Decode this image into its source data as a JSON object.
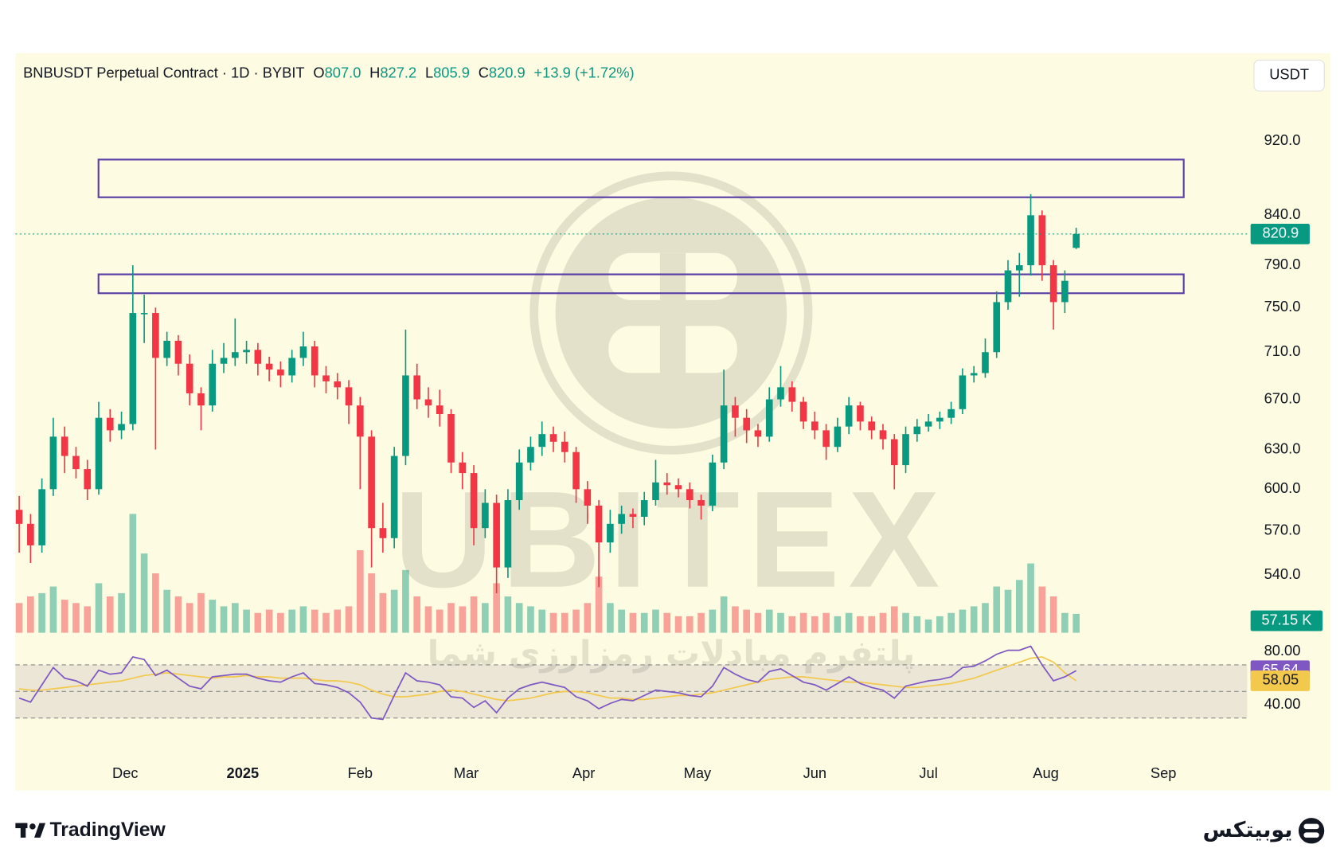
{
  "chart_data": {
    "type": "candlestick",
    "title": "BNBUSDT Perpetual Contract · 1D · BYBIT",
    "ohlc_legend": [
      {
        "key": "O",
        "label": "807.0"
      },
      {
        "key": "H",
        "label": "827.2"
      },
      {
        "key": "L",
        "label": "805.9"
      },
      {
        "key": "C",
        "label": "820.9"
      }
    ],
    "change_label": "+13.9 (+1.72%)",
    "currency": "USDT",
    "log_scale": true,
    "ylim": [
      503,
      1025
    ],
    "yticks": [
      {
        "value": 920,
        "label": "920.0"
      },
      {
        "value": 840,
        "label": "840.0"
      },
      {
        "value": 790,
        "label": "790.0"
      },
      {
        "value": 750,
        "label": "750.0"
      },
      {
        "value": 710,
        "label": "710.0"
      },
      {
        "value": 670,
        "label": "670.0"
      },
      {
        "value": 630,
        "label": "630.0"
      },
      {
        "value": 600,
        "label": "600.0"
      },
      {
        "value": 570,
        "label": "570.0"
      },
      {
        "value": 540,
        "label": "540.0"
      }
    ],
    "xlim": [
      -0.33,
      108.04
    ],
    "xticks": [
      {
        "value": 9.33,
        "label": "Dec"
      },
      {
        "value": 19.67,
        "label": "2025"
      },
      {
        "value": 30,
        "label": "Feb"
      },
      {
        "value": 39.33,
        "label": "Mar"
      },
      {
        "value": 49.67,
        "label": "Apr"
      },
      {
        "value": 59.67,
        "label": "May"
      },
      {
        "value": 70,
        "label": "Jun"
      },
      {
        "value": 80,
        "label": "Jul"
      },
      {
        "value": 90.33,
        "label": "Aug"
      },
      {
        "value": 100.67,
        "label": "Sep"
      }
    ],
    "open": [
      585,
      575,
      560,
      600,
      640,
      625,
      615,
      600,
      655,
      645,
      650,
      745,
      745,
      705,
      720,
      700,
      675,
      665,
      700,
      705,
      710,
      712,
      700,
      695,
      690,
      705,
      715,
      690,
      685,
      680,
      665,
      640,
      572,
      565,
      625,
      690,
      670,
      665,
      658,
      620,
      612,
      572,
      590,
      545,
      592,
      620,
      632,
      642,
      636,
      628,
      600,
      588,
      562,
      575,
      582,
      580,
      592,
      605,
      603,
      600,
      592,
      588,
      620,
      665,
      655,
      645,
      640,
      670,
      680,
      668,
      652,
      645,
      632,
      648,
      665,
      652,
      645,
      638,
      618,
      642,
      648,
      652,
      655,
      662,
      690,
      692,
      710,
      755,
      785,
      790,
      840,
      790,
      755,
      807
    ],
    "high": [
      595,
      582,
      608,
      655,
      648,
      632,
      622,
      668,
      662,
      660,
      790,
      762,
      750,
      728,
      725,
      708,
      680,
      712,
      718,
      740,
      720,
      718,
      706,
      702,
      712,
      728,
      720,
      698,
      692,
      686,
      672,
      645,
      590,
      632,
      730,
      700,
      680,
      678,
      662,
      628,
      618,
      600,
      596,
      600,
      630,
      640,
      652,
      648,
      644,
      632,
      606,
      592,
      585,
      588,
      586,
      598,
      622,
      612,
      608,
      605,
      596,
      626,
      695,
      672,
      662,
      650,
      680,
      698,
      685,
      672,
      660,
      650,
      655,
      672,
      668,
      656,
      650,
      642,
      648,
      654,
      658,
      660,
      668,
      696,
      698,
      722,
      765,
      795,
      802,
      862,
      845,
      795,
      785,
      827.2
    ],
    "low": [
      555,
      548,
      555,
      595,
      612,
      608,
      592,
      596,
      636,
      638,
      645,
      718,
      630,
      698,
      690,
      665,
      645,
      660,
      692,
      698,
      700,
      690,
      685,
      680,
      684,
      698,
      680,
      675,
      670,
      650,
      600,
      545,
      555,
      558,
      618,
      662,
      655,
      648,
      612,
      600,
      560,
      565,
      528,
      538,
      585,
      614,
      625,
      628,
      620,
      590,
      575,
      532,
      555,
      568,
      572,
      574,
      588,
      596,
      594,
      586,
      578,
      584,
      615,
      640,
      635,
      632,
      636,
      664,
      660,
      646,
      638,
      622,
      628,
      642,
      645,
      638,
      630,
      600,
      612,
      636,
      644,
      646,
      650,
      658,
      684,
      688,
      705,
      748,
      760,
      780,
      775,
      730,
      745,
      805.9
    ],
    "close": [
      575,
      560,
      600,
      640,
      625,
      615,
      600,
      655,
      645,
      650,
      745,
      745,
      705,
      720,
      700,
      675,
      665,
      700,
      705,
      710,
      712,
      700,
      695,
      690,
      705,
      715,
      690,
      685,
      680,
      665,
      640,
      572,
      565,
      625,
      690,
      670,
      665,
      658,
      620,
      612,
      572,
      590,
      545,
      592,
      620,
      632,
      642,
      636,
      628,
      600,
      588,
      562,
      575,
      582,
      580,
      592,
      605,
      603,
      600,
      592,
      588,
      620,
      665,
      655,
      645,
      640,
      670,
      680,
      668,
      652,
      645,
      632,
      648,
      665,
      652,
      645,
      638,
      618,
      642,
      648,
      652,
      655,
      662,
      690,
      692,
      710,
      755,
      785,
      790,
      840,
      790,
      755,
      775,
      820.9
    ],
    "up_color": "#089981",
    "down_color": "#f23645",
    "zones": [
      {
        "x": [
          6.98,
          102.46
        ],
        "y": [
          858.8,
          899.5
        ]
      },
      {
        "x": [
          6.98,
          102.46
        ],
        "y": [
          763.3,
          781.2
        ]
      }
    ],
    "zone_color": "#5b3fa8",
    "last_price_color": "#089981",
    "volume": {
      "values": [
        90000,
        110000,
        120000,
        140000,
        100000,
        90000,
        80000,
        150000,
        110000,
        120000,
        360000,
        240000,
        180000,
        130000,
        110000,
        90000,
        120000,
        100000,
        80000,
        90000,
        70000,
        60000,
        70000,
        60000,
        70000,
        80000,
        70000,
        60000,
        70000,
        80000,
        250000,
        180000,
        120000,
        130000,
        190000,
        110000,
        80000,
        70000,
        90000,
        80000,
        110000,
        90000,
        150000,
        110000,
        90000,
        80000,
        70000,
        60000,
        60000,
        70000,
        90000,
        170000,
        90000,
        70000,
        60000,
        60000,
        70000,
        60000,
        50000,
        50000,
        60000,
        70000,
        110000,
        80000,
        70000,
        60000,
        70000,
        60000,
        50000,
        60000,
        50000,
        60000,
        50000,
        60000,
        50000,
        50000,
        60000,
        80000,
        60000,
        50000,
        40000,
        50000,
        60000,
        70000,
        80000,
        90000,
        140000,
        130000,
        160000,
        210000,
        140000,
        110000,
        60000,
        57150
      ],
      "ylim": [
        0,
        1000000
      ],
      "last_label": "57.15 K"
    },
    "rsi": {
      "values": [
        45,
        42,
        55,
        68,
        60,
        58,
        54,
        66,
        63,
        64,
        76,
        74,
        62,
        66,
        60,
        54,
        52,
        61,
        62,
        63,
        63,
        60,
        58,
        57,
        61,
        64,
        56,
        55,
        53,
        49,
        42,
        30,
        29,
        47,
        64,
        58,
        57,
        55,
        46,
        45,
        38,
        43,
        34,
        45,
        52,
        55,
        57,
        55,
        53,
        46,
        43,
        37,
        41,
        44,
        43,
        47,
        51,
        50,
        49,
        47,
        46,
        54,
        68,
        63,
        59,
        57,
        65,
        67,
        62,
        57,
        55,
        51,
        56,
        61,
        56,
        53,
        51,
        45,
        54,
        56,
        58,
        59,
        61,
        68,
        69,
        73,
        78,
        81,
        81,
        84,
        70,
        58,
        61,
        65.64
      ],
      "ma": [
        52,
        51,
        51,
        52,
        53,
        54,
        55,
        56,
        57,
        58,
        60,
        62,
        63,
        64,
        63,
        62,
        61,
        60,
        61,
        61,
        62,
        61,
        61,
        60,
        60,
        60,
        59,
        58,
        58,
        57,
        55,
        51,
        48,
        46,
        46,
        47,
        48,
        50,
        51,
        50,
        48,
        46,
        44,
        43,
        44,
        45,
        47,
        49,
        50,
        50,
        49,
        47,
        45,
        45,
        44,
        44,
        45,
        46,
        47,
        47,
        48,
        49,
        51,
        53,
        55,
        57,
        59,
        60,
        61,
        61,
        60,
        59,
        58,
        57,
        57,
        56,
        55,
        54,
        53,
        53,
        54,
        55,
        56,
        58,
        60,
        63,
        66,
        69,
        72,
        75,
        76,
        72,
        64,
        58.05
      ],
      "ylim": [
        14.2,
        92.9
      ],
      "yticks": [
        {
          "value": 80,
          "label": "80.00"
        },
        {
          "value": 40,
          "label": "40.00"
        }
      ],
      "bands": [
        70,
        50,
        30
      ],
      "color": "#7e57c2",
      "ma_color": "#f2c94c"
    }
  },
  "watermark": {
    "brand": "UBITEX",
    "tagline": "پلتفرم مبادلات رمزارزی شما"
  },
  "footer": {
    "tradingview": "TradingView",
    "brand_fa": "یوبیتکس"
  }
}
